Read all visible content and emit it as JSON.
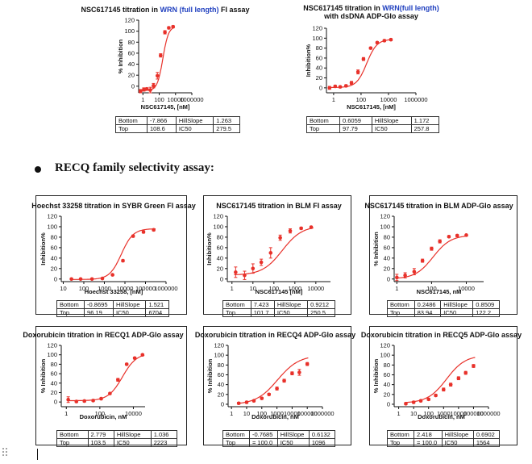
{
  "section_heading": "RECQ family selectivity assay:",
  "chart_data": [
    {
      "id": "wrn-fi",
      "type": "scatter",
      "title": {
        "a": "NSC617145 titration in ",
        "b": "WRN (full length)",
        "c": " FI assay"
      },
      "title2": "",
      "ylabel": "% Inhibition",
      "xlabel": "NSC617145, [nM]",
      "xscale": "log",
      "xlim": [
        0.3,
        1000000
      ],
      "xticks": [
        1,
        100,
        10000,
        1000000
      ],
      "xtick_labels": [
        "1",
        "100",
        "10000",
        "1000000"
      ],
      "ylim": [
        -12,
        120
      ],
      "yticks": [
        0,
        20,
        40,
        60,
        80,
        100,
        120
      ],
      "points": [
        {
          "x": 0.5,
          "y": -9,
          "e": 3
        },
        {
          "x": 1.3,
          "y": -6,
          "e": 3
        },
        {
          "x": 3,
          "y": -5,
          "e": 2
        },
        {
          "x": 8,
          "y": -7,
          "e": 5
        },
        {
          "x": 20,
          "y": 1,
          "e": 4
        },
        {
          "x": 60,
          "y": 19,
          "e": 6
        },
        {
          "x": 150,
          "y": 56,
          "e": 3
        },
        {
          "x": 500,
          "y": 98,
          "e": 3
        },
        {
          "x": 1500,
          "y": 106,
          "e": 2
        },
        {
          "x": 5000,
          "y": 108,
          "e": 2
        }
      ],
      "fit": {
        "bottom": -7.866,
        "top": 108.6,
        "hillslope": 1.263,
        "ic50": 279.5
      },
      "params": [
        [
          "Bottom",
          "-7.866",
          "HillSlope",
          "1.263"
        ],
        [
          "Top",
          "108.6",
          "IC50",
          "279.5"
        ]
      ]
    },
    {
      "id": "wrn-adp",
      "type": "scatter",
      "title": {
        "a": "NSC617145 titration in ",
        "b": "WRN(full length)",
        "c": ""
      },
      "title2": "with dsDNA ADP-Glo assay",
      "ylabel": "Inhibition%",
      "xlabel": "NSC617145, [nM]",
      "xscale": "log",
      "xlim": [
        0.3,
        1000000
      ],
      "xticks": [
        1,
        100,
        10000,
        1000000
      ],
      "xtick_labels": [
        "1",
        "100",
        "10000",
        "1000000"
      ],
      "ylim": [
        -10,
        120
      ],
      "yticks": [
        0,
        20,
        40,
        60,
        80,
        100,
        120
      ],
      "points": [
        {
          "x": 0.5,
          "y": 0,
          "e": 3
        },
        {
          "x": 1.3,
          "y": 3,
          "e": 2
        },
        {
          "x": 3,
          "y": 2,
          "e": 2
        },
        {
          "x": 8,
          "y": 4,
          "e": 2
        },
        {
          "x": 20,
          "y": 10,
          "e": 3
        },
        {
          "x": 60,
          "y": 32,
          "e": 4
        },
        {
          "x": 150,
          "y": 58,
          "e": 3
        },
        {
          "x": 500,
          "y": 80,
          "e": 2
        },
        {
          "x": 1500,
          "y": 91,
          "e": 2
        },
        {
          "x": 5000,
          "y": 95,
          "e": 2
        },
        {
          "x": 15000,
          "y": 97,
          "e": 2
        }
      ],
      "fit": {
        "bottom": 0.6059,
        "top": 97.79,
        "hillslope": 1.172,
        "ic50": 257.8
      },
      "params": [
        [
          "Bottom",
          "0.6059",
          "HillSlope",
          "1.172"
        ],
        [
          "Top",
          "97.79",
          "IC50",
          "257.8"
        ]
      ]
    },
    {
      "id": "hoechst",
      "type": "scatter",
      "title": {
        "a": "Hoechst 33258 titration in SYBR Green FI assay",
        "b": "",
        "c": ""
      },
      "title2": "",
      "ylabel": "Inhibition%",
      "xlabel": "Hoechst 33258, [nM]",
      "xscale": "log",
      "xlim": [
        8,
        1000000
      ],
      "xticks": [
        10,
        100,
        1000,
        10000,
        100000,
        1000000
      ],
      "xtick_labels": [
        "10",
        "100",
        "1000",
        "10000",
        "100000",
        "1000000"
      ],
      "ylim": [
        -5,
        120
      ],
      "yticks": [
        0,
        20,
        40,
        60,
        80,
        100,
        120
      ],
      "points": [
        {
          "x": 25,
          "y": 0,
          "e": 1
        },
        {
          "x": 70,
          "y": 0,
          "e": 1
        },
        {
          "x": 250,
          "y": 0,
          "e": 1
        },
        {
          "x": 800,
          "y": 1,
          "e": 1
        },
        {
          "x": 2500,
          "y": 8,
          "e": 1
        },
        {
          "x": 8000,
          "y": 35,
          "e": 2
        },
        {
          "x": 25000,
          "y": 82,
          "e": 2
        },
        {
          "x": 80000,
          "y": 90,
          "e": 2
        },
        {
          "x": 250000,
          "y": 94,
          "e": 2
        }
      ],
      "fit": {
        "bottom": -0.8695,
        "top": 96.19,
        "hillslope": 1.521,
        "ic50": 6704
      },
      "params": [
        [
          "Bottom",
          "-0.8695",
          "HillSlope",
          "1.521"
        ],
        [
          "Top",
          "96.19",
          "IC50",
          "6704"
        ]
      ]
    },
    {
      "id": "blm-fi",
      "type": "scatter",
      "title": {
        "a": "NSC617145 titration in BLM FI assay",
        "b": "",
        "c": ""
      },
      "title2": "",
      "ylabel": "Inhibition%",
      "xlabel": "NSC617145 [nM]",
      "xscale": "log",
      "xlim": [
        0.6,
        50000
      ],
      "xticks": [
        1,
        10,
        100,
        1000,
        10000
      ],
      "xtick_labels": [
        "1",
        "10",
        "100",
        "1000",
        "10000"
      ],
      "ylim": [
        -5,
        120
      ],
      "yticks": [
        0,
        20,
        40,
        60,
        80,
        100,
        120
      ],
      "points": [
        {
          "x": 1.5,
          "y": 13,
          "e": 10
        },
        {
          "x": 4,
          "y": 7,
          "e": 8
        },
        {
          "x": 10,
          "y": 20,
          "e": 9
        },
        {
          "x": 25,
          "y": 32,
          "e": 6
        },
        {
          "x": 70,
          "y": 50,
          "e": 10
        },
        {
          "x": 200,
          "y": 79,
          "e": 5
        },
        {
          "x": 600,
          "y": 92,
          "e": 4
        },
        {
          "x": 2000,
          "y": 97,
          "e": 2
        },
        {
          "x": 6000,
          "y": 99,
          "e": 2
        }
      ],
      "fit": {
        "bottom": 7.423,
        "top": 101.7,
        "hillslope": 0.9212,
        "ic50": 250.5
      },
      "params": [
        [
          "Bottom",
          "7.423",
          "HillSlope",
          "0.9212"
        ],
        [
          "Top",
          "101.7",
          "IC50",
          "250.5"
        ]
      ]
    },
    {
      "id": "blm-adp",
      "type": "scatter",
      "title": {
        "a": "NSC617145 titration in BLM ADP-Glo assay",
        "b": "",
        "c": ""
      },
      "title2": "",
      "ylabel": "% Inhibition",
      "xlabel": "NSC617145, nM",
      "xscale": "log",
      "xlim": [
        0.7,
        100000
      ],
      "xticks": [
        1,
        100,
        10000
      ],
      "xtick_labels": [
        "1",
        "100",
        "10000"
      ],
      "ylim": [
        -5,
        120
      ],
      "yticks": [
        0,
        20,
        40,
        60,
        80,
        100,
        120
      ],
      "points": [
        {
          "x": 1,
          "y": 3,
          "e": 6
        },
        {
          "x": 3,
          "y": 7,
          "e": 5
        },
        {
          "x": 10,
          "y": 14,
          "e": 6
        },
        {
          "x": 30,
          "y": 35,
          "e": 3
        },
        {
          "x": 100,
          "y": 58,
          "e": 3
        },
        {
          "x": 300,
          "y": 72,
          "e": 3
        },
        {
          "x": 1000,
          "y": 81,
          "e": 2
        },
        {
          "x": 3000,
          "y": 83,
          "e": 2
        },
        {
          "x": 10000,
          "y": 84,
          "e": 1
        }
      ],
      "fit": {
        "bottom": 0.2486,
        "top": 83.94,
        "hillslope": 0.8509,
        "ic50": 122.2
      },
      "params": [
        [
          "Bottom",
          "0.2486",
          "HillSlope",
          "0.8509"
        ],
        [
          "Top",
          "83.94",
          "IC50",
          "122.2"
        ]
      ]
    },
    {
      "id": "recq1",
      "type": "scatter",
      "title": {
        "a": "Doxorubicin titration in RECQ1 ADP-Glo assay",
        "b": "",
        "c": ""
      },
      "title2": "",
      "ylabel": "% Inhibition",
      "xlabel": "Doxorubicin, nM",
      "xscale": "log",
      "xlim": [
        0.5,
        50000
      ],
      "xticks": [
        1,
        100,
        10000
      ],
      "xtick_labels": [
        "1",
        "100",
        "10000"
      ],
      "ylim": [
        -10,
        120
      ],
      "yticks": [
        0,
        20,
        40,
        60,
        80,
        100,
        120
      ],
      "points": [
        {
          "x": 1.3,
          "y": 5,
          "e": 6
        },
        {
          "x": 4,
          "y": 1,
          "e": 2
        },
        {
          "x": 12,
          "y": 2,
          "e": 2
        },
        {
          "x": 40,
          "y": 3,
          "e": 2
        },
        {
          "x": 120,
          "y": 7,
          "e": 2
        },
        {
          "x": 400,
          "y": 18,
          "e": 2
        },
        {
          "x": 1200,
          "y": 47,
          "e": 3
        },
        {
          "x": 4000,
          "y": 80,
          "e": 2
        },
        {
          "x": 12000,
          "y": 93,
          "e": 2
        },
        {
          "x": 35000,
          "y": 100,
          "e": 2
        }
      ],
      "fit": {
        "bottom": 2.779,
        "top": 103.5,
        "hillslope": 1.036,
        "ic50": 2223
      },
      "params": [
        [
          "Bottom",
          "2.779",
          "HillSlope",
          "1.036"
        ],
        [
          "Top",
          "103.5",
          "IC50",
          "2223"
        ]
      ]
    },
    {
      "id": "recq4",
      "type": "scatter",
      "title": {
        "a": "Doxorubicin titration in RECQ4 ADP-Glo assay",
        "b": "",
        "c": ""
      },
      "title2": "",
      "ylabel": "% Inhibition",
      "xlabel": "Doxorubicin, nM",
      "xscale": "log",
      "xlim": [
        0.6,
        1000000
      ],
      "xticks": [
        1,
        10,
        100,
        1000,
        10000,
        100000,
        1000000
      ],
      "xtick_labels": [
        "1",
        "10",
        "100",
        "1000",
        "10000",
        "100000",
        "1000000"
      ],
      "ylim": [
        -5,
        120
      ],
      "yticks": [
        0,
        20,
        40,
        60,
        80,
        100,
        120
      ],
      "points": [
        {
          "x": 3,
          "y": 2,
          "e": 2
        },
        {
          "x": 10,
          "y": 4,
          "e": 2
        },
        {
          "x": 30,
          "y": 7,
          "e": 2
        },
        {
          "x": 100,
          "y": 12,
          "e": 2
        },
        {
          "x": 300,
          "y": 20,
          "e": 2
        },
        {
          "x": 1000,
          "y": 32,
          "e": 3
        },
        {
          "x": 3000,
          "y": 48,
          "e": 3
        },
        {
          "x": 10000,
          "y": 63,
          "e": 3
        },
        {
          "x": 30000,
          "y": 65,
          "e": 6
        },
        {
          "x": 100000,
          "y": 82,
          "e": 3
        }
      ],
      "fit": {
        "bottom": -0.7685,
        "top": 100.0,
        "hillslope": 0.6132,
        "ic50": 1096
      },
      "params": [
        [
          "Bottom",
          "-0.7685",
          "HillSlope",
          "0.6132"
        ],
        [
          "Top",
          "= 100.0",
          "IC50",
          "1096"
        ]
      ]
    },
    {
      "id": "recq5",
      "type": "scatter",
      "title": {
        "a": "Doxorubicin titration in RECQ5 ADP-Glo assay",
        "b": "",
        "c": ""
      },
      "title2": "",
      "ylabel": "% Inhibition",
      "xlabel": "Doxorubicin, nM",
      "xscale": "log",
      "xlim": [
        0.5,
        1000000
      ],
      "xticks": [
        1,
        10,
        100,
        1000,
        10000,
        100000,
        1000000
      ],
      "xtick_labels": [
        "1",
        "10",
        "100",
        "1000",
        "10000",
        "100000",
        "1000000"
      ],
      "ylim": [
        -5,
        120
      ],
      "yticks": [
        0,
        20,
        40,
        60,
        80,
        100,
        120
      ],
      "points": [
        {
          "x": 3,
          "y": 1,
          "e": 2
        },
        {
          "x": 10,
          "y": 4,
          "e": 2
        },
        {
          "x": 30,
          "y": 7,
          "e": 2
        },
        {
          "x": 100,
          "y": 10,
          "e": 2
        },
        {
          "x": 300,
          "y": 18,
          "e": 2
        },
        {
          "x": 1000,
          "y": 30,
          "e": 3
        },
        {
          "x": 3000,
          "y": 40,
          "e": 3
        },
        {
          "x": 10000,
          "y": 53,
          "e": 3
        },
        {
          "x": 30000,
          "y": 64,
          "e": 3
        },
        {
          "x": 100000,
          "y": 78,
          "e": 3
        }
      ],
      "fit": {
        "bottom": 2.418,
        "top": 100.0,
        "hillslope": 0.6902,
        "ic50": 1564
      },
      "params": [
        [
          "Bottom",
          "2.418",
          "HillSlope",
          "0.6902"
        ],
        [
          "Top",
          "= 100.0",
          "IC50",
          "1564"
        ]
      ]
    }
  ]
}
